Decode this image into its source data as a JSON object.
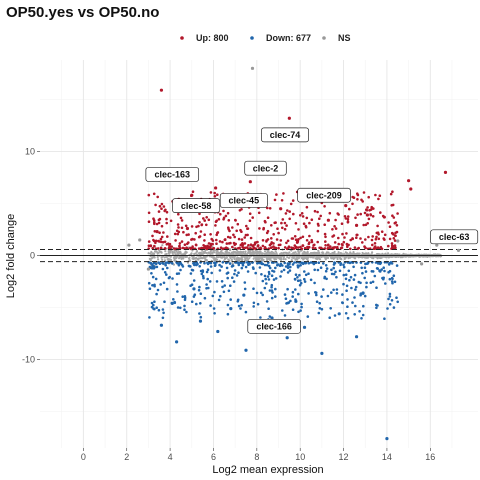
{
  "chart_data": {
    "type": "scatter",
    "title": "OP50.yes vs OP50.no",
    "xlabel": "Log2 mean expression",
    "ylabel": "Log2 fold change",
    "xlim": [
      -2,
      18.2
    ],
    "ylim": [
      -18.5,
      18.8
    ],
    "xticks": [
      0,
      2,
      4,
      6,
      8,
      10,
      12,
      14,
      16
    ],
    "yticks": [
      -10,
      0,
      10
    ],
    "fc_threshold": 0.58,
    "grid": true,
    "legend_position": "top",
    "series": [
      {
        "name": "Up: 800",
        "color": "#b2182b",
        "points": [
          [
            3.6,
            15.9
          ],
          [
            9.5,
            13.2
          ],
          [
            16.7,
            8.0
          ],
          [
            15.0,
            7.2
          ],
          [
            7.7,
            7.1
          ],
          [
            15.1,
            6.4
          ],
          [
            11.8,
            6.0
          ],
          [
            4.4,
            5.4
          ],
          [
            5.0,
            5.8
          ],
          [
            6.1,
            6.5
          ],
          [
            12.1,
            4.8
          ],
          [
            13.1,
            3.9
          ],
          [
            6.2,
            4.2
          ],
          [
            9.1,
            4.5
          ],
          [
            11.3,
            3.4
          ],
          [
            12.6,
            2.9
          ],
          [
            3.4,
            2.3
          ],
          [
            4.8,
            2.6
          ]
        ]
      },
      {
        "name": "Down: 677",
        "color": "#2166ac",
        "points": [
          [
            14.0,
            -17.6
          ],
          [
            11.0,
            -9.4
          ],
          [
            7.5,
            -9.1
          ],
          [
            4.3,
            -8.3
          ],
          [
            12.6,
            -7.8
          ],
          [
            9.4,
            -7.9
          ],
          [
            6.2,
            -7.3
          ],
          [
            3.6,
            -6.7
          ],
          [
            10.2,
            -6.9
          ],
          [
            5.4,
            -6.3
          ],
          [
            8.7,
            -6.0
          ],
          [
            11.8,
            -5.6
          ],
          [
            6.8,
            -5.1
          ],
          [
            4.1,
            -4.6
          ],
          [
            9.8,
            -4.4
          ],
          [
            12.9,
            -3.6
          ],
          [
            7.4,
            -3.8
          ],
          [
            5.1,
            -3.2
          ]
        ]
      },
      {
        "name": "NS",
        "color": "#999999",
        "points": [
          [
            7.8,
            18.0
          ],
          [
            2.1,
            1.0
          ],
          [
            3.0,
            -1.3
          ],
          [
            14.5,
            1.4
          ],
          [
            16.3,
            1.0
          ],
          [
            15.6,
            -0.8
          ],
          [
            2.6,
            1.5
          ],
          [
            17.3,
            0.5
          ]
        ]
      }
    ],
    "labels": [
      {
        "text": "clec-74",
        "x": 9.3,
        "y": 11.6
      },
      {
        "text": "clec-163",
        "x": 4.1,
        "y": 7.8
      },
      {
        "text": "clec-2",
        "x": 8.4,
        "y": 8.4
      },
      {
        "text": "clec-58",
        "x": 5.2,
        "y": 4.8
      },
      {
        "text": "clec-45",
        "x": 7.4,
        "y": 5.3
      },
      {
        "text": "clec-209",
        "x": 11.1,
        "y": 5.8
      },
      {
        "text": "clec-63",
        "x": 17.1,
        "y": 1.8
      },
      {
        "text": "clec-166",
        "x": 8.8,
        "y": -6.8
      }
    ]
  }
}
